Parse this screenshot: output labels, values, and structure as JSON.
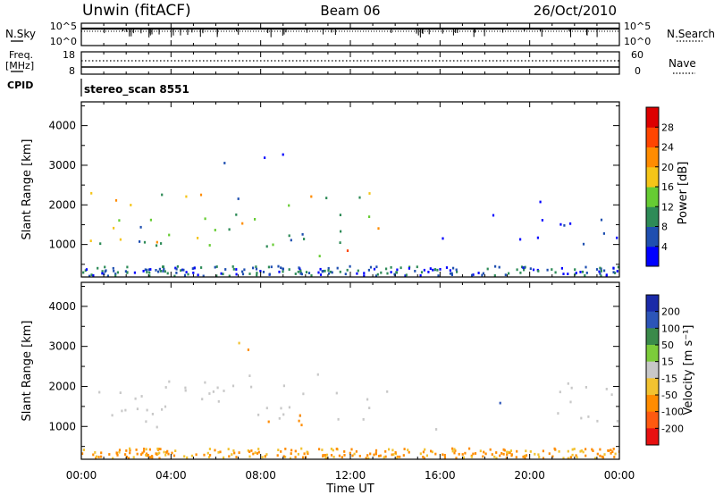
{
  "header": {
    "station": "Unwin (fitACF)",
    "beam": "Beam 06",
    "date": "26/Oct/2010"
  },
  "panels": {
    "noise": {
      "left_label": "N.Sky",
      "right_label": "N.Search",
      "left_ticks": [
        "10^5",
        "10^0"
      ],
      "right_ticks": [
        "10^5",
        "10^0"
      ]
    },
    "freq": {
      "left_label_1": "Freq.",
      "left_label_2": "[MHz]",
      "right_label": "Nave",
      "left_ticks": [
        "18",
        "8"
      ],
      "right_ticks": [
        "60",
        "0"
      ]
    },
    "cpid": {
      "label": "CPID",
      "value": "stereo_scan 8551"
    }
  },
  "x_axis": {
    "title": "Time UT",
    "ticks": [
      "00:00",
      "04:00",
      "08:00",
      "12:00",
      "16:00",
      "20:00",
      "00:00"
    ]
  },
  "colorbars": {
    "power": {
      "title": "Power [dB]",
      "labels": [
        "28",
        "24",
        "20",
        "16",
        "12",
        "8",
        "4"
      ]
    },
    "velocity": {
      "title": "Velocity [m s⁻¹]",
      "labels": [
        "200",
        "100",
        "50",
        "15",
        "-15",
        "-50",
        "-100",
        "-200"
      ]
    }
  },
  "chart_data": [
    {
      "type": "heatmap",
      "name": "power",
      "xlabel": "Time UT",
      "ylabel": "Slant Range [km]",
      "x_ticks": [
        "00:00",
        "04:00",
        "08:00",
        "12:00",
        "16:00",
        "20:00",
        "00:00"
      ],
      "xlim_hours": [
        0,
        24
      ],
      "y_ticks": [
        1000,
        2000,
        3000,
        4000
      ],
      "ylim": [
        180,
        4600
      ],
      "colorbar": {
        "label": "Power [dB]",
        "ticks": [
          4,
          8,
          12,
          16,
          20,
          24,
          28
        ],
        "range": [
          0,
          32
        ],
        "colors": [
          "#0000ff",
          "#1f4fb0",
          "#2e8b57",
          "#66cc33",
          "#f5c518",
          "#ff8c00",
          "#ff4500",
          "#dd0000"
        ]
      },
      "regions": [
        {
          "feature": "main band",
          "t": [
            0.2,
            13.5
          ],
          "range_km": [
            950,
            2300
          ],
          "max_db": 24
        },
        {
          "feature": "upper patch",
          "t": [
            6.0,
            9.0
          ],
          "range_km": [
            2900,
            3300
          ],
          "max_db": 8
        },
        {
          "feature": "echo patch",
          "t": [
            8.0,
            11.0
          ],
          "range_km": [
            800,
            1300
          ],
          "max_db": 12
        },
        {
          "feature": "bright patch",
          "t": [
            10.5,
            12.0
          ],
          "range_km": [
            700,
            1700
          ],
          "max_db": 28
        },
        {
          "feature": "patch",
          "t": [
            15.5,
            16.2
          ],
          "range_km": [
            800,
            1300
          ],
          "max_db": 8
        },
        {
          "feature": "patch",
          "t": [
            18.2,
            18.7
          ],
          "range_km": [
            1500,
            2100
          ],
          "max_db": 8
        },
        {
          "feature": "patch",
          "t": [
            19.5,
            24.0
          ],
          "range_km": [
            1000,
            2100
          ],
          "max_db": 8
        }
      ]
    },
    {
      "type": "heatmap",
      "name": "velocity",
      "xlabel": "Time UT",
      "ylabel": "Slant Range [km]",
      "x_ticks": [
        "00:00",
        "04:00",
        "08:00",
        "12:00",
        "16:00",
        "20:00",
        "00:00"
      ],
      "xlim_hours": [
        0,
        24
      ],
      "y_ticks": [
        1000,
        2000,
        3000,
        4000
      ],
      "ylim": [
        180,
        4600
      ],
      "colorbar": {
        "label": "Velocity [m s⁻¹]",
        "ticks": [
          200,
          100,
          50,
          15,
          -15,
          -50,
          -100,
          -200
        ],
        "colors": [
          "#1a2aa8",
          "#2c55b8",
          "#3a8a4a",
          "#7ccc3a",
          "#c8c8c8",
          "#f2c230",
          "#ff8c00",
          "#ff5a10",
          "#e81010"
        ]
      },
      "regions": [
        {
          "feature": "main band (ground scatter)",
          "t": [
            0.2,
            14.0
          ],
          "range_km": [
            950,
            2300
          ],
          "velocity_ms": [
            -15,
            15
          ]
        },
        {
          "feature": "upper patch",
          "t": [
            6.5,
            9.0
          ],
          "range_km": [
            2900,
            3300
          ],
          "velocity_ms": [
            -50,
            15
          ]
        },
        {
          "feature": "orange patch",
          "t": [
            8.0,
            11.5
          ],
          "range_km": [
            800,
            1300
          ],
          "velocity_ms": [
            -100,
            -50
          ]
        },
        {
          "feature": "patch",
          "t": [
            15.5,
            16.2
          ],
          "range_km": [
            800,
            1300
          ],
          "velocity_ms": [
            -15,
            15
          ]
        },
        {
          "feature": "patch",
          "t": [
            18.2,
            18.7
          ],
          "range_km": [
            1500,
            2100
          ],
          "velocity_ms": [
            15,
            200
          ]
        },
        {
          "feature": "patch",
          "t": [
            19.5,
            24.0
          ],
          "range_km": [
            1000,
            2100
          ],
          "velocity_ms": [
            -15,
            15
          ]
        }
      ]
    }
  ]
}
